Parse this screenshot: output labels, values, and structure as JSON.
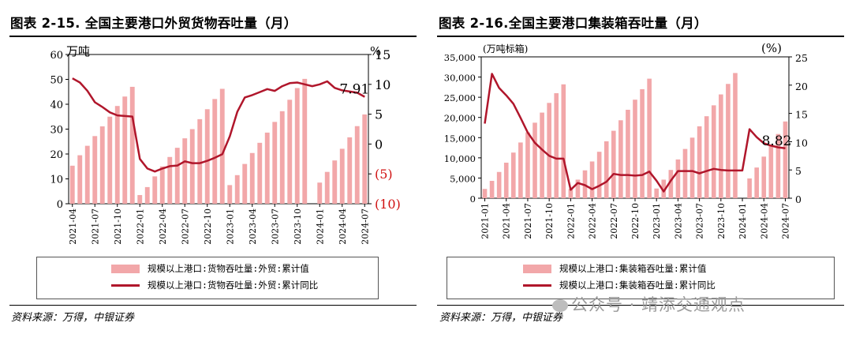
{
  "left": {
    "title": "图表 2-15. 全国主要港口外贸货物吞吐量（月）",
    "source": "资料来源：万得，中银证券",
    "legend": {
      "bar": "规模以上港口:货物吞吐量:外贸:累计值",
      "line": "规模以上港口:货物吞吐量:外贸:累计同比"
    },
    "unit_left": "万吨",
    "unit_right": "%",
    "annotation": "7.91",
    "left_ticks": [
      "60",
      "50",
      "40",
      "30",
      "20",
      "10",
      "0"
    ],
    "right_ticks": [
      "15",
      "10",
      "5",
      "0",
      "(5)",
      "(10)"
    ],
    "x_tick_labels": [
      "2021-04",
      "2021-07",
      "2021-10",
      "2022-01",
      "2022-04",
      "2022-07",
      "2022-10",
      "2023-01",
      "2023-04",
      "2023-07",
      "2023-10",
      "2024-01",
      "2024-04",
      "2024-07"
    ],
    "colors": {
      "bar": "#f2a7a9",
      "line": "#b0162b",
      "neg_tick": "#d01010"
    }
  },
  "right": {
    "title": "图表 2-16.全国主要港口集装箱吞吐量（月）",
    "source": "资料来源：万得，中银证券",
    "legend": {
      "bar": "规模以上港口:集装箱吞吐量:累计值",
      "line": "规模以上港口:集装箱吞吐量:累计同比"
    },
    "unit_left": "(万吨标箱)",
    "unit_right": "(%)",
    "annotation": "8.82",
    "left_ticks": [
      "35,000",
      "30,000",
      "25,000",
      "20,000",
      "15,000",
      "10,000",
      "5,000",
      "0"
    ],
    "right_ticks": [
      "25",
      "20",
      "15",
      "10",
      "5",
      "0"
    ],
    "x_tick_labels": [
      "2021-01",
      "2021-04",
      "2021-07",
      "2021-10",
      "2022-01",
      "2022-04",
      "2022-07",
      "2022-10",
      "2023-01",
      "2023-04",
      "2023-07",
      "2023-10",
      "2024-01",
      "2024-04",
      "2024-07"
    ],
    "colors": {
      "bar": "#f2a7a9",
      "line": "#b0162b"
    }
  },
  "watermark": "公众号 · 靖添交通观点",
  "chart_data": [
    {
      "type": "bar+line",
      "title": "图表 2-15. 全国主要港口外贸货物吞吐量（月）",
      "x": [
        "2021-04",
        "2021-05",
        "2021-06",
        "2021-07",
        "2021-08",
        "2021-09",
        "2021-10",
        "2021-11",
        "2021-12",
        "2022-01",
        "2022-02",
        "2022-03",
        "2022-04",
        "2022-05",
        "2022-06",
        "2022-07",
        "2022-08",
        "2022-09",
        "2022-10",
        "2022-11",
        "2022-12",
        "2023-01",
        "2023-02",
        "2023-03",
        "2023-04",
        "2023-05",
        "2023-06",
        "2023-07",
        "2023-08",
        "2023-09",
        "2023-10",
        "2023-11",
        "2023-12",
        "2024-01",
        "2024-02",
        "2024-03",
        "2024-04",
        "2024-05",
        "2024-06",
        "2024-07"
      ],
      "series": [
        {
          "name": "规模以上港口:货物吞吐量:外贸:累计值",
          "kind": "bar",
          "axis": "left",
          "unit": "万吨",
          "values": [
            15.3,
            19.5,
            23.3,
            27.2,
            31.1,
            35.0,
            39.3,
            43.1,
            47.0,
            3.5,
            6.7,
            11.0,
            15.0,
            18.8,
            22.5,
            26.3,
            30.0,
            34.0,
            38.0,
            42.1,
            46.2,
            7.5,
            11.5,
            16.0,
            20.4,
            24.5,
            28.6,
            32.9,
            37.2,
            41.8,
            46.5,
            50.2,
            null,
            8.5,
            12.8,
            17.4,
            22.1,
            26.7,
            31.2,
            35.9
          ]
        },
        {
          "name": "规模以上港口:货物吞吐量:外贸:累计同比",
          "kind": "line",
          "axis": "right",
          "unit": "%",
          "values": [
            11.0,
            10.3,
            8.9,
            7.0,
            6.2,
            5.3,
            4.8,
            4.7,
            4.6,
            -2.5,
            -4.1,
            -4.6,
            -4.1,
            -3.7,
            -3.6,
            -2.9,
            -3.2,
            -3.2,
            -2.8,
            -2.3,
            -1.7,
            1.3,
            5.4,
            7.8,
            8.2,
            8.7,
            9.2,
            8.9,
            9.7,
            10.2,
            10.3,
            10.0,
            9.7,
            10.0,
            10.5,
            9.4,
            9.0,
            8.8,
            8.6,
            7.91
          ]
        }
      ],
      "ylim_left": [
        0,
        60
      ],
      "ylim_right": [
        -10,
        15
      ],
      "ylabel_left": "万吨",
      "ylabel_right": "%"
    },
    {
      "type": "bar+line",
      "title": "图表 2-16.全国主要港口集装箱吞吐量（月）",
      "x": [
        "2021-01",
        "2021-02",
        "2021-03",
        "2021-04",
        "2021-05",
        "2021-06",
        "2021-07",
        "2021-08",
        "2021-09",
        "2021-10",
        "2021-11",
        "2021-12",
        "2022-01",
        "2022-02",
        "2022-03",
        "2022-04",
        "2022-05",
        "2022-06",
        "2022-07",
        "2022-08",
        "2022-09",
        "2022-10",
        "2022-11",
        "2022-12",
        "2023-01",
        "2023-02",
        "2023-03",
        "2023-04",
        "2023-05",
        "2023-06",
        "2023-07",
        "2023-08",
        "2023-09",
        "2023-10",
        "2023-11",
        "2023-12",
        "2024-01",
        "2024-02",
        "2024-03",
        "2024-04",
        "2024-05",
        "2024-06",
        "2024-07"
      ],
      "series": [
        {
          "name": "规模以上港口:集装箱吞吐量:累计值",
          "kind": "bar",
          "axis": "left",
          "unit": "万吨标箱",
          "values": [
            2300,
            4300,
            6500,
            8800,
            11300,
            13800,
            16300,
            18700,
            21200,
            23600,
            26000,
            28200,
            2300,
            4600,
            6900,
            9100,
            11500,
            14100,
            16700,
            19300,
            21900,
            24400,
            27000,
            29600,
            2400,
            4600,
            7000,
            9600,
            12200,
            15000,
            17800,
            20300,
            23000,
            25700,
            28300,
            31000,
            null,
            4900,
            7600,
            10300,
            13000,
            15900,
            19000
          ]
        },
        {
          "name": "规模以上港口:集装箱吞吐量:累计同比",
          "kind": "line",
          "axis": "right",
          "unit": "%",
          "values": [
            13.2,
            22.0,
            19.5,
            18.2,
            16.7,
            14.2,
            11.6,
            9.8,
            8.6,
            7.5,
            7.0,
            7.0,
            1.5,
            2.7,
            2.3,
            1.6,
            2.2,
            2.9,
            4.3,
            4.1,
            4.1,
            4.0,
            4.1,
            4.7,
            3.1,
            1.2,
            3.1,
            4.8,
            4.8,
            4.8,
            4.4,
            4.8,
            5.2,
            5.0,
            4.9,
            4.9,
            4.9,
            12.2,
            10.8,
            9.7,
            9.3,
            9.0,
            8.82
          ]
        }
      ],
      "ylim_left": [
        0,
        35000
      ],
      "ylim_right": [
        0,
        25
      ],
      "ylabel_left": "万吨标箱",
      "ylabel_right": "%"
    }
  ]
}
